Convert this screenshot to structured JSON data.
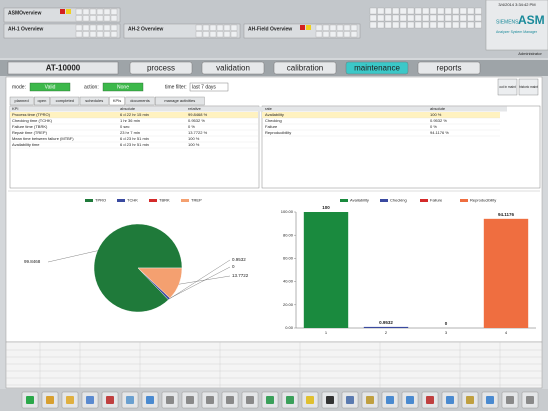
{
  "header": {
    "panels": [
      "ASMOverview",
      "AH-1 Overview",
      "AH-2 Overview",
      "AH-Field Overview"
    ],
    "datetime": "3/4/2014 3:34:42 PM",
    "brand": "SIEMENS",
    "product": "ASM",
    "product_subtitle": "Analyzer System Manager",
    "user": "Administrator"
  },
  "device": "AT-10000",
  "tabs": [
    "process",
    "validation",
    "calibration",
    "maintenance",
    "reports"
  ],
  "active_tab": "maintenance",
  "filters": {
    "mode_label": "mode:",
    "mode": "Valid",
    "action_label": "action:",
    "action": "None",
    "time_filter_label": "time filter:",
    "time_filter": "last 7 days"
  },
  "buttons": [
    "out in maint",
    "historic maint"
  ],
  "subtabs": [
    "planned",
    "open",
    "completed",
    "schedules",
    "KPIs",
    "documents",
    "manage activities"
  ],
  "active_subtab": "KPIs",
  "kpi_table": {
    "columns": [
      "KPI",
      "absolute",
      "relative"
    ],
    "rows": [
      [
        "Process time (TPRO)",
        "6 d 22 hr 15 min",
        "99.8468 %"
      ],
      [
        "Checking time (TCHK)",
        "1 hr 36 min",
        "0.9532 %"
      ],
      [
        "Failure time (TBRK)",
        "0 sec",
        "0 %"
      ],
      [
        "Repair time (TREP)",
        "23 hr 7 min",
        "13.7722 %"
      ],
      [
        "Mean time between failure (MTBF)",
        "6 d 23 hr 51 min",
        "100 %"
      ],
      [
        "Availability time",
        "6 d 23 hr 51 min",
        "100 %"
      ]
    ]
  },
  "rate_table": {
    "columns": [
      "rate",
      "absolute"
    ],
    "rows": [
      [
        "Availability",
        "100 %"
      ],
      [
        "Checking",
        "0.9532 %"
      ],
      [
        "Failure",
        "0 %"
      ],
      [
        "Reproducibility",
        "94.1176 %"
      ]
    ]
  },
  "chart_data": [
    {
      "type": "pie",
      "categories": [
        "TPRO",
        "TCHK",
        "TBRK",
        "TREP"
      ],
      "values": [
        99.8468,
        0.9532,
        0,
        13.7722
      ],
      "colors": [
        "#1f7a3a",
        "#3a4aa0",
        "#d42a2a",
        "#f4a070"
      ]
    },
    {
      "type": "bar",
      "categories": [
        "1",
        "2",
        "3",
        "4"
      ],
      "legend": [
        "Availability",
        "Checking",
        "Failure",
        "Reproducibility"
      ],
      "values": [
        100,
        0.9532,
        0,
        94.1176
      ],
      "colors": [
        "#1a8a3e",
        "#3a4aa0",
        "#d42a2a",
        "#ef6e40"
      ],
      "ylim": [
        0,
        100
      ],
      "yticks": [
        {
          "value": 0,
          "label": "0.00"
        },
        {
          "value": 20,
          "label": "20.00"
        },
        {
          "value": 40,
          "label": "40.00"
        },
        {
          "value": 60,
          "label": "60.00"
        },
        {
          "value": 80,
          "label": "80.00"
        },
        {
          "value": 100,
          "label": "100.00"
        }
      ],
      "grid": false
    }
  ]
}
